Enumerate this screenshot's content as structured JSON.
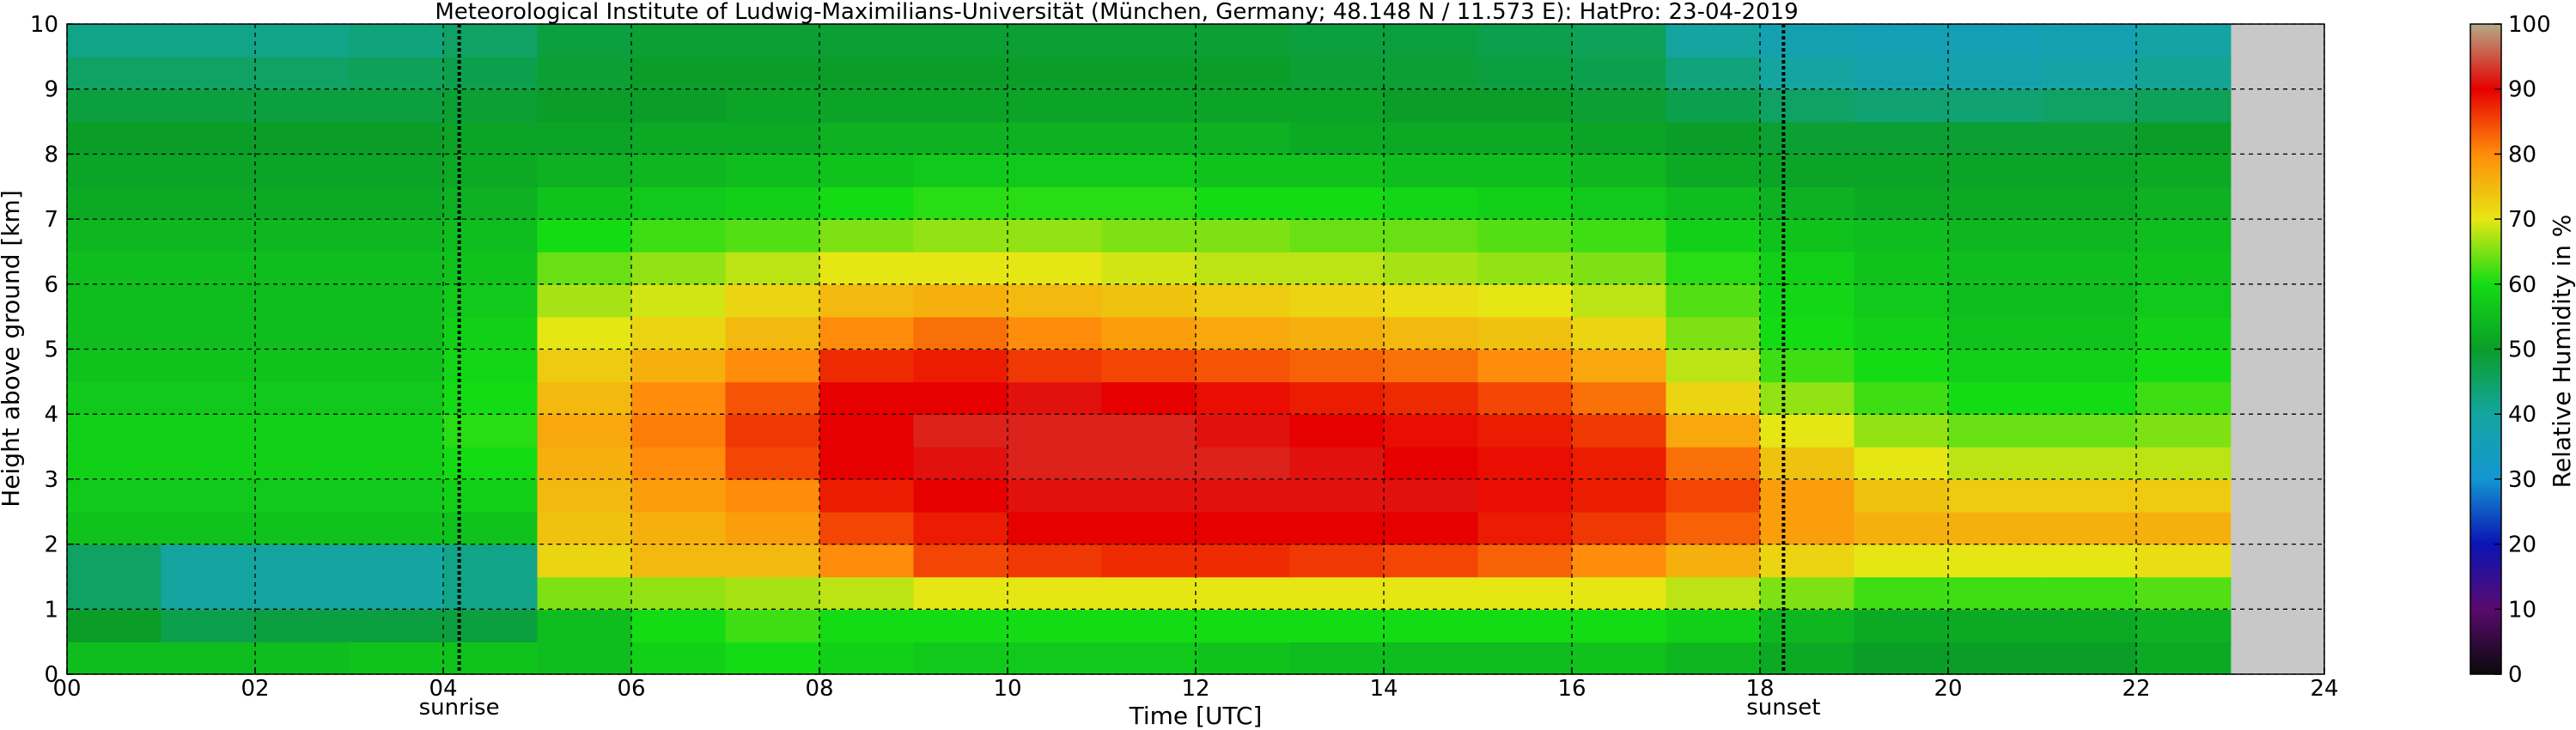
{
  "chart_data": {
    "type": "heatmap",
    "title": "Meteorological Institute of Ludwig-Maximilians-Universität (München, Germany; 48.148 N / 11.573 E):    HatPro: 23-04-2019",
    "xlabel": "Time [UTC]",
    "ylabel": "Height above ground [km]",
    "xlim": [
      0,
      24
    ],
    "ylim": [
      0,
      10
    ],
    "x_ticks": [
      0,
      2,
      4,
      6,
      8,
      10,
      12,
      14,
      16,
      18,
      20,
      22,
      24
    ],
    "x_tick_labels": [
      "00",
      "02",
      "04",
      "06",
      "08",
      "10",
      "12",
      "14",
      "16",
      "18",
      "20",
      "22",
      "24"
    ],
    "y_ticks": [
      0,
      1,
      2,
      3,
      4,
      5,
      6,
      7,
      8,
      9,
      10
    ],
    "y_tick_labels": [
      "0",
      "1",
      "2",
      "3",
      "4",
      "5",
      "6",
      "7",
      "8",
      "9",
      "10"
    ],
    "grid": true,
    "data_end_hour": 23,
    "annotations": [
      {
        "text": "sunrise",
        "x": 4.17
      },
      {
        "text": "sunset",
        "x": 18.25
      }
    ],
    "colorbar": {
      "label": "Relative Humidity in %",
      "range": [
        0,
        100
      ],
      "ticks": [
        0,
        10,
        20,
        30,
        40,
        50,
        60,
        70,
        80,
        90,
        100
      ],
      "tick_labels": [
        "0",
        "10",
        "20",
        "30",
        "40",
        "50",
        "60",
        "70",
        "80",
        "90",
        "100"
      ],
      "colors": [
        "#0a0a0a",
        "#5a0a6e",
        "#0a14b4",
        "#1496d2",
        "#14a5a0",
        "#0a9e28",
        "#14dc14",
        "#e6e614",
        "#ff8c0a",
        "#e60000",
        "#b4aa88"
      ]
    },
    "no_data_color": "#c8c8c8",
    "x": [
      0,
      1,
      2,
      3,
      4,
      5,
      6,
      7,
      8,
      9,
      10,
      11,
      12,
      13,
      14,
      15,
      16,
      17,
      18,
      19,
      20,
      21,
      22,
      23
    ],
    "y": [
      0.25,
      0.75,
      1.25,
      1.75,
      2.25,
      2.75,
      3.25,
      3.75,
      4.25,
      4.75,
      5.25,
      5.75,
      6.25,
      6.75,
      7.25,
      7.75,
      8.25,
      8.75,
      9.25,
      9.75
    ],
    "z": [
      [
        55,
        55,
        55,
        56,
        56,
        55,
        58,
        60,
        58,
        57,
        57,
        57,
        56,
        55,
        55,
        55,
        56,
        54,
        52,
        50,
        50,
        50,
        52,
        55
      ],
      [
        50,
        47,
        48,
        48,
        48,
        55,
        60,
        62,
        60,
        60,
        60,
        60,
        60,
        60,
        60,
        60,
        60,
        58,
        54,
        52,
        52,
        52,
        53,
        54
      ],
      [
        45,
        40,
        40,
        40,
        42,
        65,
        66,
        67,
        68,
        70,
        70,
        70,
        70,
        70,
        70,
        70,
        70,
        68,
        65,
        62,
        62,
        62,
        63,
        62
      ],
      [
        45,
        40,
        40,
        40,
        42,
        72,
        75,
        75,
        80,
        85,
        86,
        87,
        87,
        86,
        85,
        83,
        80,
        76,
        72,
        70,
        70,
        70,
        71,
        70
      ],
      [
        56,
        56,
        56,
        56,
        56,
        74,
        76,
        78,
        85,
        88,
        90,
        90,
        90,
        90,
        90,
        88,
        86,
        83,
        78,
        76,
        76,
        76,
        76,
        74
      ],
      [
        57,
        57,
        57,
        57,
        58,
        75,
        78,
        80,
        88,
        90,
        91,
        91,
        91,
        91,
        91,
        89,
        88,
        85,
        78,
        74,
        73,
        73,
        73,
        72
      ],
      [
        58,
        58,
        58,
        58,
        60,
        76,
        80,
        85,
        90,
        91,
        92,
        92,
        92,
        91,
        90,
        89,
        88,
        82,
        74,
        70,
        68,
        68,
        68,
        68
      ],
      [
        58,
        58,
        58,
        58,
        61,
        77,
        81,
        86,
        90,
        92,
        92,
        92,
        91,
        90,
        89,
        88,
        86,
        77,
        70,
        66,
        64,
        64,
        65,
        66
      ],
      [
        57,
        57,
        57,
        57,
        60,
        75,
        80,
        84,
        90,
        90,
        91,
        90,
        89,
        88,
        87,
        85,
        82,
        72,
        66,
        62,
        60,
        60,
        62,
        63
      ],
      [
        56,
        56,
        56,
        56,
        59,
        73,
        76,
        80,
        87,
        88,
        86,
        85,
        84,
        83,
        82,
        80,
        77,
        68,
        62,
        60,
        58,
        58,
        60,
        61
      ],
      [
        55,
        55,
        55,
        55,
        58,
        70,
        72,
        75,
        80,
        82,
        80,
        78,
        77,
        76,
        75,
        74,
        72,
        65,
        60,
        58,
        56,
        56,
        58,
        60
      ],
      [
        55,
        55,
        55,
        55,
        57,
        67,
        69,
        72,
        75,
        76,
        75,
        74,
        73,
        72,
        71,
        70,
        68,
        63,
        59,
        57,
        55,
        55,
        57,
        58
      ],
      [
        55,
        55,
        55,
        55,
        56,
        64,
        66,
        68,
        70,
        70,
        70,
        69,
        68,
        68,
        67,
        66,
        65,
        61,
        58,
        56,
        55,
        55,
        56,
        57
      ],
      [
        54,
        54,
        54,
        54,
        55,
        60,
        62,
        63,
        65,
        66,
        66,
        65,
        65,
        64,
        64,
        63,
        62,
        58,
        56,
        55,
        54,
        54,
        55,
        56
      ],
      [
        52,
        52,
        52,
        52,
        53,
        56,
        57,
        58,
        60,
        61,
        61,
        61,
        60,
        60,
        59,
        58,
        57,
        55,
        53,
        52,
        52,
        52,
        53,
        54
      ],
      [
        51,
        51,
        51,
        51,
        52,
        53,
        54,
        55,
        56,
        57,
        57,
        57,
        56,
        56,
        55,
        55,
        54,
        52,
        51,
        51,
        51,
        51,
        52,
        52
      ],
      [
        50,
        50,
        50,
        50,
        51,
        51,
        52,
        52,
        53,
        53,
        53,
        53,
        53,
        52,
        52,
        52,
        51,
        50,
        49,
        49,
        49,
        49,
        50,
        51
      ],
      [
        48,
        48,
        48,
        48,
        49,
        50,
        50,
        51,
        51,
        51,
        51,
        51,
        51,
        51,
        50,
        50,
        49,
        47,
        45,
        44,
        44,
        45,
        46,
        48
      ],
      [
        45,
        45,
        45,
        46,
        47,
        49,
        50,
        50,
        50,
        50,
        50,
        50,
        50,
        49,
        49,
        48,
        47,
        43,
        40,
        38,
        38,
        39,
        41,
        44
      ],
      [
        42,
        42,
        42,
        43,
        45,
        48,
        49,
        49,
        49,
        49,
        49,
        49,
        49,
        48,
        48,
        47,
        46,
        40,
        37,
        36,
        36,
        37,
        39,
        42
      ]
    ]
  }
}
